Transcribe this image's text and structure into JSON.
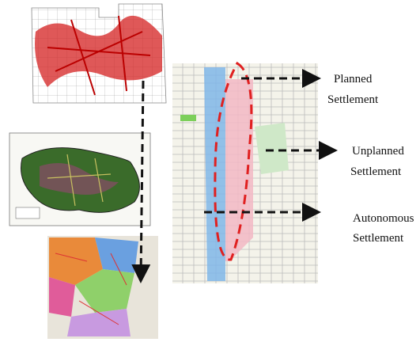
{
  "labels": [
    [
      "Planned",
      "Settlement"
    ],
    [
      "Unplanned",
      "Settlement"
    ],
    [
      "Autonomous",
      "Settlement"
    ]
  ]
}
